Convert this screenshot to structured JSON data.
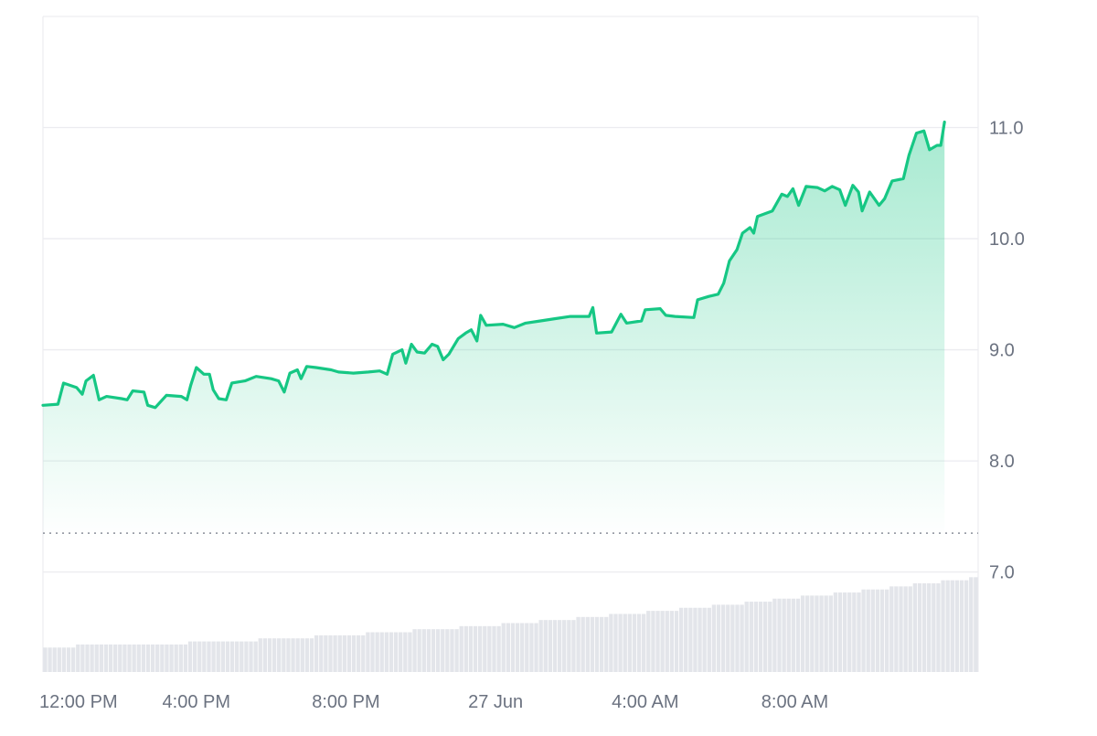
{
  "chart_data": {
    "type": "area",
    "title": "",
    "xlabel": "",
    "ylabel": "",
    "ylim": [
      6.1,
      12.0
    ],
    "x_tick_labels": [
      "12:00 PM",
      "4:00 PM",
      "8:00 PM",
      "27 Jun",
      "4:00 AM",
      "8:00 AM"
    ],
    "x_tick_hours": [
      12,
      16,
      20,
      24,
      28,
      32
    ],
    "xlim_hours": [
      11.9,
      36.9
    ],
    "y_ticks": [
      7.0,
      8.0,
      9.0,
      10.0,
      11.0
    ],
    "y_tick_labels": [
      "7.0",
      "8.0",
      "9.0",
      "10.0",
      "11.0"
    ],
    "reference_line": 7.35,
    "grid": true,
    "colors": {
      "line": "#16c784",
      "area_top": "#16c784",
      "grid": "#ececf0",
      "volume": "#e3e5ea",
      "reference": "#8a8f99",
      "axis_text": "#6b7280"
    },
    "series": [
      {
        "points": [
          [
            11.9,
            8.5
          ],
          [
            12.3,
            8.51
          ],
          [
            12.45,
            8.7
          ],
          [
            12.8,
            8.66
          ],
          [
            12.95,
            8.6
          ],
          [
            13.05,
            8.72
          ],
          [
            13.25,
            8.77
          ],
          [
            13.4,
            8.55
          ],
          [
            13.6,
            8.58
          ],
          [
            14.0,
            8.56
          ],
          [
            14.15,
            8.55
          ],
          [
            14.3,
            8.63
          ],
          [
            14.6,
            8.62
          ],
          [
            14.7,
            8.5
          ],
          [
            14.9,
            8.48
          ],
          [
            15.2,
            8.59
          ],
          [
            15.6,
            8.58
          ],
          [
            15.75,
            8.55
          ],
          [
            15.85,
            8.68
          ],
          [
            16.0,
            8.84
          ],
          [
            16.2,
            8.78
          ],
          [
            16.35,
            8.78
          ],
          [
            16.45,
            8.64
          ],
          [
            16.6,
            8.56
          ],
          [
            16.8,
            8.55
          ],
          [
            16.95,
            8.7
          ],
          [
            17.3,
            8.72
          ],
          [
            17.6,
            8.76
          ],
          [
            18.0,
            8.74
          ],
          [
            18.2,
            8.72
          ],
          [
            18.35,
            8.62
          ],
          [
            18.5,
            8.79
          ],
          [
            18.7,
            8.82
          ],
          [
            18.8,
            8.74
          ],
          [
            18.95,
            8.85
          ],
          [
            19.2,
            8.84
          ],
          [
            19.6,
            8.82
          ],
          [
            19.8,
            8.8
          ],
          [
            20.2,
            8.79
          ],
          [
            20.6,
            8.8
          ],
          [
            20.9,
            8.81
          ],
          [
            21.1,
            8.78
          ],
          [
            21.25,
            8.96
          ],
          [
            21.5,
            9.0
          ],
          [
            21.6,
            8.88
          ],
          [
            21.75,
            9.05
          ],
          [
            21.9,
            8.98
          ],
          [
            22.1,
            8.97
          ],
          [
            22.3,
            9.05
          ],
          [
            22.45,
            9.03
          ],
          [
            22.6,
            8.91
          ],
          [
            22.75,
            8.96
          ],
          [
            23.0,
            9.1
          ],
          [
            23.2,
            9.15
          ],
          [
            23.35,
            9.18
          ],
          [
            23.5,
            9.08
          ],
          [
            23.6,
            9.31
          ],
          [
            23.75,
            9.22
          ],
          [
            24.2,
            9.23
          ],
          [
            24.5,
            9.2
          ],
          [
            24.8,
            9.24
          ],
          [
            25.2,
            9.26
          ],
          [
            25.6,
            9.28
          ],
          [
            26.0,
            9.3
          ],
          [
            26.5,
            9.3
          ],
          [
            26.6,
            9.38
          ],
          [
            26.7,
            9.15
          ],
          [
            27.1,
            9.16
          ],
          [
            27.35,
            9.32
          ],
          [
            27.5,
            9.24
          ],
          [
            27.9,
            9.26
          ],
          [
            28.0,
            9.36
          ],
          [
            28.4,
            9.37
          ],
          [
            28.55,
            9.31
          ],
          [
            28.8,
            9.3
          ],
          [
            29.3,
            9.29
          ],
          [
            29.4,
            9.45
          ],
          [
            29.7,
            9.48
          ],
          [
            29.95,
            9.5
          ],
          [
            30.1,
            9.6
          ],
          [
            30.25,
            9.8
          ],
          [
            30.45,
            9.9
          ],
          [
            30.6,
            10.05
          ],
          [
            30.8,
            10.1
          ],
          [
            30.9,
            10.05
          ],
          [
            31.0,
            10.2
          ],
          [
            31.4,
            10.25
          ],
          [
            31.65,
            10.4
          ],
          [
            31.8,
            10.38
          ],
          [
            31.95,
            10.45
          ],
          [
            32.1,
            10.3
          ],
          [
            32.3,
            10.47
          ],
          [
            32.6,
            10.46
          ],
          [
            32.8,
            10.43
          ],
          [
            33.0,
            10.47
          ],
          [
            33.2,
            10.44
          ],
          [
            33.35,
            10.3
          ],
          [
            33.55,
            10.48
          ],
          [
            33.7,
            10.42
          ],
          [
            33.8,
            10.25
          ],
          [
            34.0,
            10.42
          ],
          [
            34.25,
            10.3
          ],
          [
            34.4,
            10.36
          ],
          [
            34.6,
            10.52
          ],
          [
            34.9,
            10.54
          ],
          [
            35.05,
            10.75
          ],
          [
            35.25,
            10.95
          ],
          [
            35.45,
            10.97
          ],
          [
            35.6,
            10.8
          ],
          [
            35.8,
            10.84
          ],
          [
            35.9,
            10.84
          ],
          [
            36.0,
            11.05
          ]
        ]
      }
    ],
    "volume": {
      "bar_count": 200,
      "start_value": 0.06,
      "end_value": 0.22
    }
  }
}
